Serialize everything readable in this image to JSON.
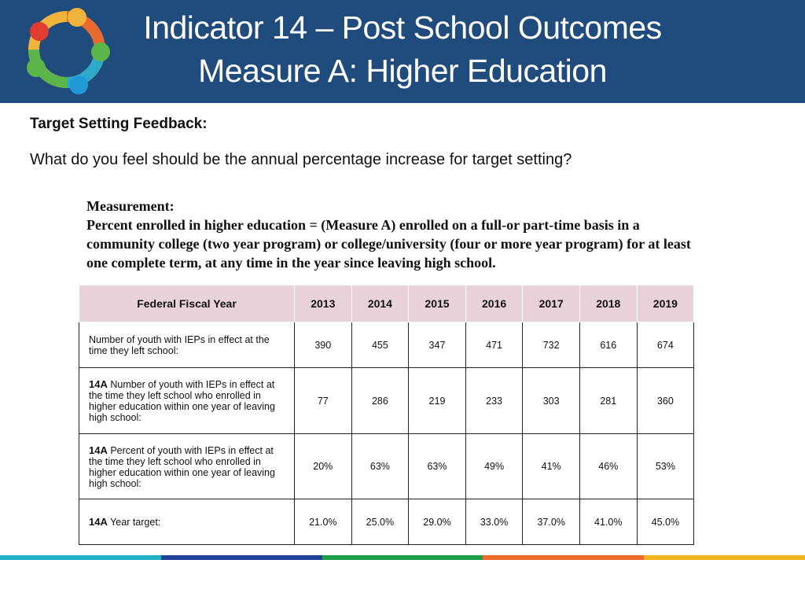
{
  "header": {
    "title_line1": "Indicator 14 – Post School Outcomes",
    "title_line2": "Measure A: Higher Education"
  },
  "feedback": {
    "heading": "Target Setting Feedback:",
    "question": "What do you feel should be the annual percentage increase for target setting?"
  },
  "measurement": {
    "label": "Measurement:",
    "text": "Percent enrolled in higher education = (Measure A) enrolled on a full-or part-time basis in a community college (two year program) or college/university (four or more year program) for at least one complete term, at any time in the year since leaving high school."
  },
  "table": {
    "header": [
      "Federal Fiscal Year",
      "2013",
      "2014",
      "2015",
      "2016",
      "2017",
      "2018",
      "2019"
    ],
    "rows": [
      {
        "label": "Number of youth with IEPs in effect at the time they left school:",
        "cells": [
          "390",
          "455",
          "347",
          "471",
          "732",
          "616",
          "674"
        ]
      },
      {
        "code": "14A",
        "label": "Number of youth with IEPs in effect at the time they left school who enrolled in higher education within one year of leaving high school:",
        "cells": [
          "77",
          "286",
          "219",
          "233",
          "303",
          "281",
          "360"
        ]
      },
      {
        "code": "14A",
        "label": "Percent of youth with IEPs in effect at the time they left school who enrolled in higher education within one year of leaving high school:",
        "cells": [
          "20%",
          "63%",
          "63%",
          "49%",
          "41%",
          "46%",
          "53%"
        ]
      },
      {
        "code": "14A",
        "label": "Year target:",
        "cells": [
          "21.0%",
          "25.0%",
          "29.0%",
          "33.0%",
          "37.0%",
          "41.0%",
          "45.0%"
        ]
      }
    ]
  }
}
